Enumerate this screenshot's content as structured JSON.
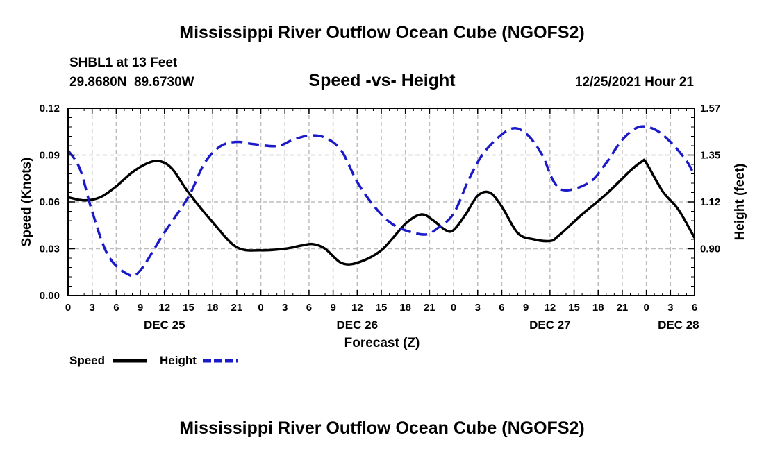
{
  "page": {
    "top_title": "Mississippi River Outflow Ocean Cube (NGOFS2)",
    "bottom_title": "Mississippi River Outflow Ocean Cube (NGOFS2)"
  },
  "header": {
    "station": "SHBL1 at 13 Feet",
    "coords": "29.8680N  89.6730W",
    "subtitle": "Speed -vs- Height",
    "datetime": "12/25/2021 Hour 21"
  },
  "chart_data": {
    "type": "line",
    "xlabel": "Forecast (Z)",
    "ylabel": "Speed (Knots)",
    "y2label": "Height (feet)",
    "x_range_hours": [
      0,
      78
    ],
    "x_ticks": [
      {
        "h": 0,
        "label": "0"
      },
      {
        "h": 3,
        "label": "3"
      },
      {
        "h": 6,
        "label": "6"
      },
      {
        "h": 9,
        "label": "9"
      },
      {
        "h": 12,
        "label": "12"
      },
      {
        "h": 15,
        "label": "15"
      },
      {
        "h": 18,
        "label": "18"
      },
      {
        "h": 21,
        "label": "21"
      },
      {
        "h": 24,
        "label": "0"
      },
      {
        "h": 27,
        "label": "3"
      },
      {
        "h": 30,
        "label": "6"
      },
      {
        "h": 33,
        "label": "9"
      },
      {
        "h": 36,
        "label": "12"
      },
      {
        "h": 39,
        "label": "15"
      },
      {
        "h": 42,
        "label": "18"
      },
      {
        "h": 45,
        "label": "21"
      },
      {
        "h": 48,
        "label": "0"
      },
      {
        "h": 51,
        "label": "3"
      },
      {
        "h": 54,
        "label": "6"
      },
      {
        "h": 57,
        "label": "9"
      },
      {
        "h": 60,
        "label": "12"
      },
      {
        "h": 63,
        "label": "15"
      },
      {
        "h": 66,
        "label": "18"
      },
      {
        "h": 69,
        "label": "21"
      },
      {
        "h": 72,
        "label": "0"
      },
      {
        "h": 75,
        "label": "3"
      },
      {
        "h": 78,
        "label": "6"
      }
    ],
    "date_labels": [
      {
        "h": 12,
        "label": "DEC 25"
      },
      {
        "h": 36,
        "label": "DEC 26"
      },
      {
        "h": 60,
        "label": "DEC 27"
      },
      {
        "h": 76,
        "label": "DEC 28"
      }
    ],
    "ylim": [
      0,
      0.12
    ],
    "y_ticks": [
      "0.00",
      "0.03",
      "0.06",
      "0.09",
      "0.12"
    ],
    "y2lim": [
      0.68,
      1.57
    ],
    "y2_ticks": [
      "0.90",
      "1.12",
      "1.35",
      "1.57"
    ],
    "series": [
      {
        "name": "Speed",
        "axis": "left",
        "color": "#000000",
        "dash": "solid",
        "x": [
          0,
          2,
          4,
          6,
          8,
          10,
          11.5,
          13,
          15,
          18,
          21,
          24,
          27,
          29,
          30.5,
          32,
          34,
          36,
          39,
          42,
          44,
          45.5,
          47,
          48,
          49.5,
          51,
          52.5,
          54,
          56,
          58,
          60,
          61,
          64,
          67,
          70,
          71.5,
          72,
          74,
          76,
          78
        ],
        "values": [
          0.063,
          0.061,
          0.063,
          0.07,
          0.079,
          0.085,
          0.086,
          0.081,
          0.066,
          0.047,
          0.031,
          0.029,
          0.03,
          0.032,
          0.033,
          0.03,
          0.021,
          0.021,
          0.029,
          0.046,
          0.052,
          0.048,
          0.042,
          0.042,
          0.052,
          0.064,
          0.066,
          0.057,
          0.04,
          0.036,
          0.035,
          0.038,
          0.052,
          0.065,
          0.08,
          0.086,
          0.085,
          0.067,
          0.055,
          0.037
        ]
      },
      {
        "name": "Height",
        "axis": "right",
        "color": "#1a1ac8",
        "dash": "dashed",
        "x": [
          0,
          1.5,
          3,
          5,
          7.5,
          9,
          12,
          15,
          17,
          19,
          21,
          23,
          26,
          28,
          30,
          32,
          34,
          36,
          38,
          40,
          42,
          44.5,
          46,
          48,
          50,
          52,
          55,
          57,
          59,
          60.5,
          62,
          65,
          67,
          69,
          71,
          73,
          75,
          77,
          78
        ],
        "values": [
          1.37,
          1.28,
          1.08,
          0.87,
          0.78,
          0.8,
          0.98,
          1.15,
          1.31,
          1.39,
          1.41,
          1.4,
          1.39,
          1.42,
          1.44,
          1.43,
          1.37,
          1.22,
          1.11,
          1.03,
          0.99,
          0.97,
          1.0,
          1.07,
          1.24,
          1.37,
          1.47,
          1.45,
          1.35,
          1.22,
          1.18,
          1.22,
          1.31,
          1.42,
          1.48,
          1.47,
          1.41,
          1.32,
          1.25
        ]
      }
    ],
    "legend": [
      {
        "label": "Speed",
        "color": "#000000",
        "dash": "solid"
      },
      {
        "label": "Height",
        "color": "#1a1ac8",
        "dash": "dashed"
      }
    ]
  }
}
